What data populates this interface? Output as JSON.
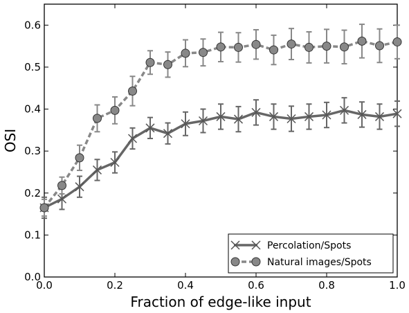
{
  "chart_data": {
    "type": "line",
    "title": "",
    "xlabel": "Fraction of edge-like input",
    "ylabel": "OSI",
    "xlim": [
      0.0,
      1.0
    ],
    "ylim": [
      0.0,
      0.65
    ],
    "xticks": [
      "0.0",
      "0.2",
      "0.4",
      "0.6",
      "0.8",
      "1.0"
    ],
    "yticks": [
      "0.0",
      "0.1",
      "0.2",
      "0.3",
      "0.4",
      "0.5",
      "0.6"
    ],
    "grid": false,
    "legend_position": "bottom-right",
    "x": [
      0.0,
      0.05,
      0.1,
      0.15,
      0.2,
      0.25,
      0.3,
      0.35,
      0.4,
      0.45,
      0.5,
      0.55,
      0.6,
      0.65,
      0.7,
      0.75,
      0.8,
      0.85,
      0.9,
      0.95,
      1.0
    ],
    "series": [
      {
        "name": "Percolation/Spots",
        "marker": "x",
        "line_style": "solid",
        "color": "#666666",
        "values": [
          0.165,
          0.186,
          0.215,
          0.255,
          0.273,
          0.33,
          0.355,
          0.342,
          0.365,
          0.372,
          0.382,
          0.376,
          0.392,
          0.382,
          0.377,
          0.382,
          0.386,
          0.397,
          0.387,
          0.382,
          0.389
        ],
        "errors": [
          0.025,
          0.025,
          0.025,
          0.025,
          0.025,
          0.025,
          0.025,
          0.025,
          0.028,
          0.028,
          0.03,
          0.03,
          0.03,
          0.03,
          0.03,
          0.03,
          0.03,
          0.03,
          0.03,
          0.03,
          0.03
        ]
      },
      {
        "name": "Natural images/Spots",
        "marker": "circle",
        "line_style": "dashed",
        "color": "#888888",
        "values": [
          0.165,
          0.218,
          0.284,
          0.378,
          0.397,
          0.443,
          0.511,
          0.506,
          0.533,
          0.535,
          0.548,
          0.547,
          0.554,
          0.541,
          0.555,
          0.547,
          0.55,
          0.548,
          0.562,
          0.551,
          0.56
        ],
        "errors": [
          0.02,
          0.02,
          0.03,
          0.032,
          0.032,
          0.035,
          0.028,
          0.03,
          0.032,
          0.032,
          0.035,
          0.035,
          0.035,
          0.035,
          0.037,
          0.037,
          0.04,
          0.04,
          0.04,
          0.04,
          0.04
        ]
      }
    ]
  }
}
